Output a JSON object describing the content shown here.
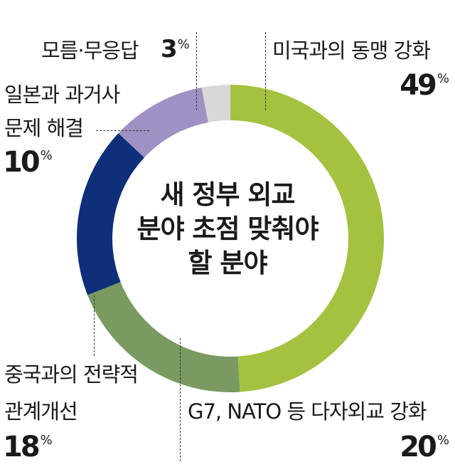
{
  "chart_data": {
    "type": "pie",
    "title": "새 정부 외교 분야 초점 맞춰야 할 분야",
    "title_lines": [
      "새 정부 외교",
      "분야 초점 맞춰야",
      "할 분야"
    ],
    "unit": "%",
    "slices": [
      {
        "label": "미국과의 동맹 강화",
        "value": 49,
        "color": "#a4c23f"
      },
      {
        "label": "G7, NATO 등 다자외교 강화",
        "value": 20,
        "color": "#7a9a61"
      },
      {
        "label": "중국과의 전략적 관계개선",
        "label_lines": [
          "중국과의 전략적",
          "관계개선"
        ],
        "value": 18,
        "color": "#0f2f7a"
      },
      {
        "label": "일본과 과거사 문제 해결",
        "label_lines": [
          "일본과 과거사",
          "문제 해결"
        ],
        "value": 10,
        "color": "#9f91c3"
      },
      {
        "label": "모름·무응답",
        "value": 3,
        "color": "#d8d8d8"
      }
    ]
  }
}
